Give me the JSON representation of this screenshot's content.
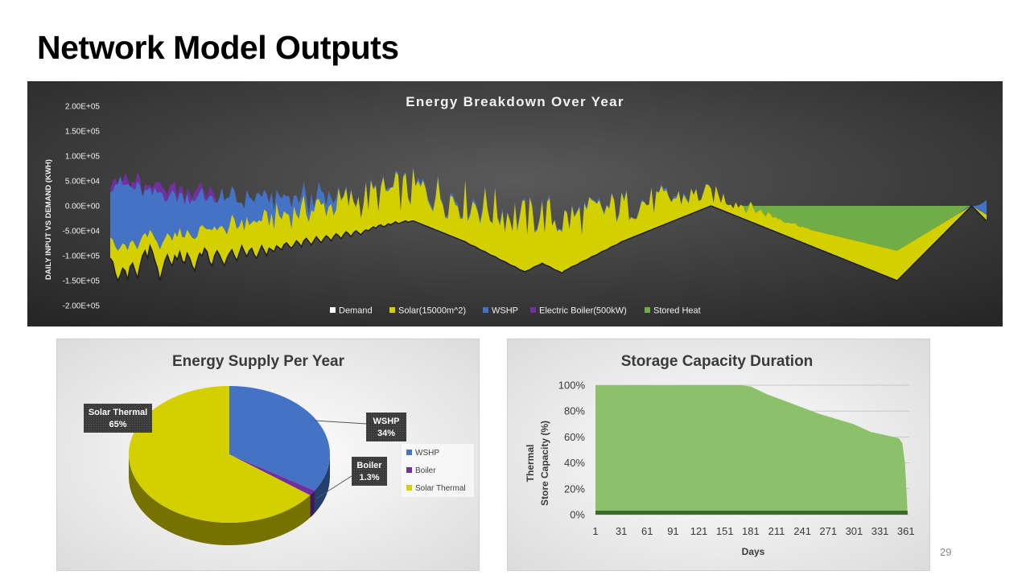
{
  "slide": {
    "title": "Network Model Outputs",
    "page_number": "29"
  },
  "chart_data": [
    {
      "type": "area",
      "title": "Energy Breakdown Over Year",
      "xlabel": "",
      "ylabel": "DAILY INPUT VS DEMAND (KWH)",
      "yticks": [
        "2.00E+05",
        "1.50E+05",
        "1.00E+05",
        "5.00E+04",
        "0.00E+00",
        "-5.00E+04",
        "-1.00E+05",
        "-1.50E+05",
        "-2.00E+05"
      ],
      "ylim": [
        -200000,
        200000
      ],
      "x": {
        "start": 1,
        "end": 365
      },
      "grid": false,
      "legend_position": "bottom",
      "series": [
        {
          "name": "Demand",
          "color": "#ffffff",
          "values": [
            -105000,
            -112000,
            -135000,
            -150000,
            -140000,
            -125000,
            -130000,
            -148000,
            -122000,
            -115000,
            -130000,
            -145000,
            -120000,
            -100000,
            -90000,
            -105000,
            -80000,
            -92000,
            -110000,
            -125000,
            -150000,
            -130000,
            -110000,
            -98000,
            -112000,
            -120000,
            -100000,
            -108000,
            -92000,
            -110000,
            -115000,
            -95000,
            -105000,
            -120000,
            -130000,
            -110000,
            -95000,
            -100000,
            -85000,
            -92000,
            -112000,
            -120000,
            -100000,
            -90000,
            -98000,
            -110000,
            -120000,
            -105000,
            -95000,
            -88000,
            -100000,
            -110000,
            -95000,
            -80000,
            -92000,
            -102000,
            -90000,
            -85000,
            -98000,
            -105000,
            -92000,
            -80000,
            -90000,
            -100000,
            -85000,
            -88000,
            -92000,
            -80000,
            -84000,
            -88000,
            -78000,
            -74000,
            -80000,
            -85000,
            -78000,
            -70000,
            -75000,
            -82000,
            -70000,
            -65000,
            -72000,
            -78000,
            -70000,
            -62000,
            -68000,
            -74000,
            -66000,
            -60000,
            -64000,
            -70000,
            -62000,
            -56000,
            -60000,
            -66000,
            -58000,
            -52000,
            -56000,
            -62000,
            -54000,
            -50000,
            -54000,
            -58000,
            -52000,
            -48000,
            -50000,
            -46000,
            -42000,
            -45000,
            -40000,
            -38000,
            -42000,
            -40000,
            -36000,
            -38000,
            -35000,
            -32000,
            -36000,
            -34000,
            -32000,
            -30000,
            -33000,
            -31000,
            -30000,
            -32000,
            -34000,
            -36000,
            -38000,
            -40000,
            -42000,
            -44000,
            -46000,
            -48000,
            -50000,
            -52000,
            -54000,
            -56000,
            -58000,
            -60000,
            -62000,
            -64000,
            -66000,
            -68000,
            -70000,
            -72000,
            -75000,
            -78000,
            -80000,
            -82000,
            -85000,
            -88000,
            -90000,
            -92000,
            -95000,
            -98000,
            -100000,
            -102000,
            -105000,
            -108000,
            -110000,
            -112000,
            -115000,
            -118000,
            -120000,
            -122000,
            -125000,
            -128000,
            -130000,
            -132000,
            -130000,
            -128000,
            -125000,
            -122000,
            -120000,
            -118000,
            -115000,
            -118000,
            -120000,
            -122000,
            -125000,
            -128000,
            -130000,
            -132000,
            -135000,
            -130000,
            -128000,
            -125000,
            -122000,
            -120000,
            -118000,
            -115000,
            -112000,
            -110000,
            -108000,
            -105000,
            -102000,
            -100000,
            -98000,
            -95000,
            -92000,
            -90000,
            -88000,
            -85000,
            -82000,
            -80000,
            -78000,
            -75000,
            -72000,
            -70000,
            -68000,
            -66000,
            -64000,
            -62000,
            -60000,
            -58000,
            -56000,
            -54000,
            -52000,
            -50000,
            -48000,
            -46000,
            -44000,
            -42000,
            -40000,
            -38000,
            -36000,
            -34000,
            -32000,
            -30000,
            -28000,
            -26000,
            -24000,
            -22000,
            -20000,
            -18000,
            -16000,
            -14000,
            -12000,
            -10000,
            -8000,
            -6000,
            -4000,
            -2000,
            0,
            -2000,
            -4000,
            -6000,
            -8000,
            -10000,
            -12000,
            -14000,
            -16000,
            -18000,
            -20000,
            -22000,
            -24000,
            -26000,
            -28000,
            -30000,
            -32000,
            -34000,
            -36000,
            -38000,
            -40000,
            -42000,
            -44000,
            -46000,
            -48000,
            -50000,
            -52000,
            -54000,
            -56000,
            -58000,
            -60000,
            -62000,
            -64000,
            -66000,
            -68000,
            -70000,
            -72000,
            -74000,
            -76000,
            -78000,
            -80000,
            -82000,
            -84000,
            -86000,
            -88000,
            -90000,
            -92000,
            -94000,
            -96000,
            -98000,
            -100000,
            -102000,
            -104000,
            -106000,
            -108000,
            -110000,
            -112000,
            -114000,
            -116000,
            -118000,
            -120000,
            -122000,
            -124000,
            -126000,
            -128000,
            -130000,
            -132000,
            -134000,
            -136000,
            -138000,
            -140000,
            -142000,
            -144000,
            -146000,
            -148000,
            -150000,
            -145000,
            -140000,
            -135000,
            -130000,
            -125000,
            -120000,
            -115000,
            -110000,
            -105000,
            -100000,
            -95000,
            -90000,
            -85000,
            -80000,
            -75000,
            -70000,
            -65000,
            -60000,
            -55000,
            -50000,
            -45000,
            -40000,
            -35000,
            -30000,
            -25000,
            -20000,
            -15000,
            -10000,
            -5000,
            0,
            -5000,
            -10000,
            -15000,
            -20000,
            -25000,
            -30000
          ]
        },
        {
          "name": "Solar(15000m^2)",
          "color": "#d4d000"
        },
        {
          "name": "WSHP",
          "color": "#4472c4"
        },
        {
          "name": "Electric Boiler(500kW)",
          "color": "#7030a0"
        },
        {
          "name": "Stored Heat",
          "color": "#70ad47"
        }
      ]
    },
    {
      "type": "pie",
      "title": "Energy Supply Per Year",
      "categories": [
        "WSHP",
        "Boiler",
        "Solar Thermal"
      ],
      "values": [
        34,
        1.3,
        65
      ],
      "data_labels": [
        "34%",
        "1.3%",
        "65%"
      ],
      "colors": [
        "#4472c4",
        "#7030a0",
        "#d4d000"
      ],
      "legend_position": "right"
    },
    {
      "type": "area",
      "title": "Storage Capacity Duration",
      "xlabel": "Days",
      "ylabel": "Thermal Store Capacity (%)",
      "ylabel_lines": [
        "Thermal",
        "Store Capacity (%)"
      ],
      "xticks": [
        "1",
        "31",
        "61",
        "91",
        "121",
        "151",
        "181",
        "211",
        "241",
        "271",
        "301",
        "331",
        "361"
      ],
      "yticks": [
        "0%",
        "20%",
        "40%",
        "60%",
        "80%",
        "100%"
      ],
      "ylim": [
        0,
        100
      ],
      "x": {
        "start": 1,
        "end": 365
      },
      "grid": true,
      "legend_position": "none",
      "color": "#8dc06a",
      "profile": [
        [
          1,
          100
        ],
        [
          170,
          100
        ],
        [
          181,
          99
        ],
        [
          200,
          93
        ],
        [
          220,
          88
        ],
        [
          240,
          83
        ],
        [
          260,
          78
        ],
        [
          280,
          74
        ],
        [
          300,
          70
        ],
        [
          320,
          64
        ],
        [
          340,
          61
        ],
        [
          353,
          59
        ],
        [
          357,
          55
        ],
        [
          360,
          40
        ],
        [
          362,
          15
        ],
        [
          363,
          0
        ]
      ]
    }
  ]
}
